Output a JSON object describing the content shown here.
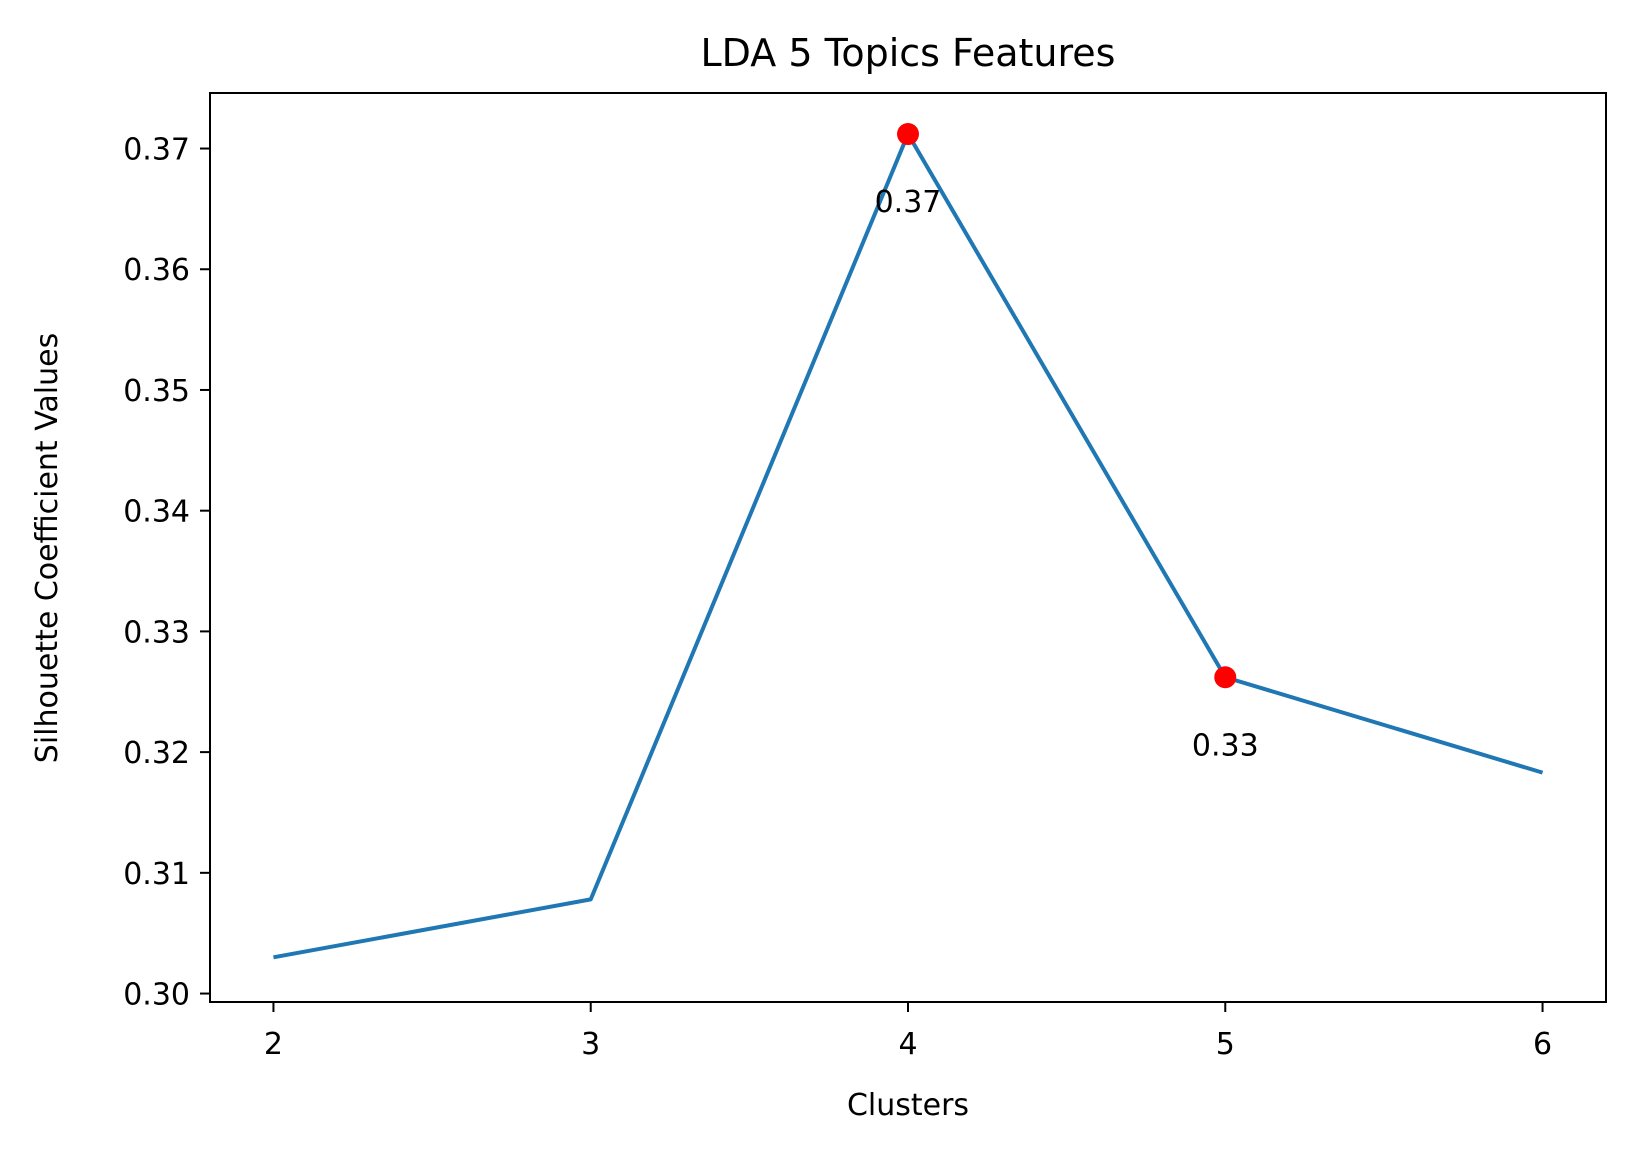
{
  "chart_data": {
    "type": "line",
    "title": "LDA 5 Topics Features",
    "xlabel": "Clusters",
    "ylabel": "Silhouette Coefficient Values",
    "x": [
      2,
      3,
      4,
      5,
      6
    ],
    "series": [
      {
        "values": [
          0.303,
          0.3078,
          0.3712,
          0.3262,
          0.3183
        ],
        "color": "#1f77b4"
      }
    ],
    "highlight_points": [
      {
        "x": 4,
        "y": 0.3712,
        "label": "0.37",
        "color": "#ff0000"
      },
      {
        "x": 5,
        "y": 0.3262,
        "label": "0.33",
        "color": "#ff0000"
      }
    ],
    "xlim": [
      1.8,
      6.2
    ],
    "ylim": [
      0.2993,
      0.3746
    ],
    "xticks": [
      "2",
      "3",
      "4",
      "5",
      "6"
    ],
    "yticks": [
      "0.30",
      "0.31",
      "0.32",
      "0.33",
      "0.34",
      "0.35",
      "0.36",
      "0.37"
    ],
    "grid": false,
    "legend": "none"
  }
}
